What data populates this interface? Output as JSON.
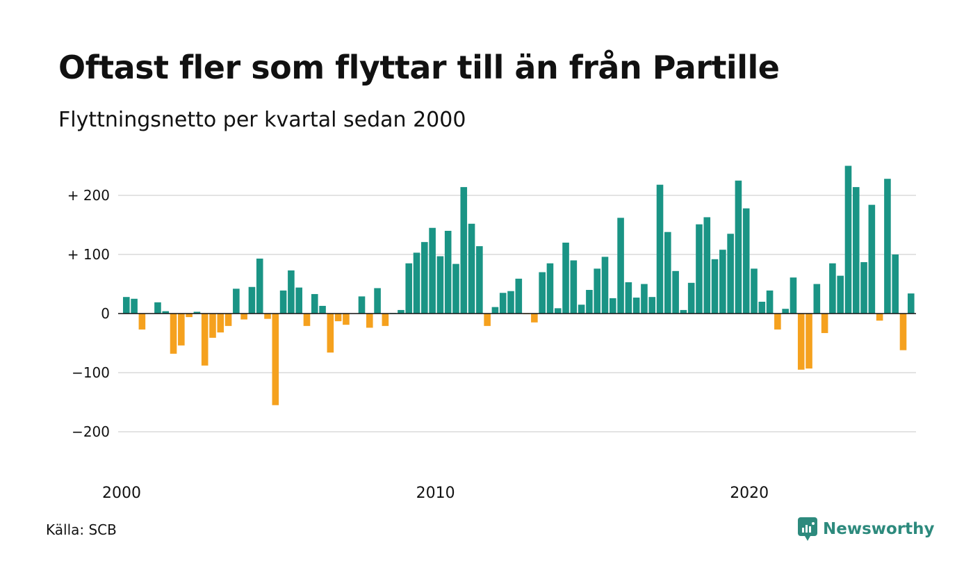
{
  "title": "Oftast fler som flyttar till än från Partille",
  "subtitle": "Flyttningsnetto per kvartal sedan 2000",
  "source": "Källa: SCB",
  "brand": {
    "name": "Newsworthy",
    "icon": "newsworthy-logo-icon",
    "color": "#2d8a7d"
  },
  "colors": {
    "positive": "#1a9485",
    "negative": "#f5a11e",
    "grid": "#e3e3e3",
    "zero": "#111111"
  },
  "chart_data": {
    "type": "bar",
    "title": "Oftast fler som flyttar till än från Partille",
    "subtitle": "Flyttningsnetto per kvartal sedan 2000",
    "xlabel": "",
    "ylabel": "",
    "ylim": [
      -235,
      255
    ],
    "grid": true,
    "y_ticks": [
      {
        "value": 200,
        "label": "+ 200"
      },
      {
        "value": 100,
        "label": "+ 100"
      },
      {
        "value": 0,
        "label": "0"
      },
      {
        "value": -100,
        "label": "−100"
      },
      {
        "value": -200,
        "label": "−200"
      }
    ],
    "x_ticks": [
      {
        "value": "2000",
        "index": 0
      },
      {
        "value": "2010",
        "index": 40
      },
      {
        "value": "2020",
        "index": 80
      }
    ],
    "series": [
      {
        "values": [
          28,
          25,
          -27,
          0,
          19,
          4,
          -68,
          -54,
          -6,
          3,
          -88,
          -41,
          -32,
          -21,
          42,
          -10,
          45,
          93,
          -9,
          -155,
          39,
          73,
          44,
          -21,
          33,
          13,
          -66,
          -13,
          -19,
          0,
          29,
          -24,
          43,
          -21,
          1,
          6,
          85,
          103,
          121,
          145,
          97,
          140,
          84,
          214,
          152,
          114,
          -21,
          11,
          35,
          38,
          59,
          -1,
          -15,
          70,
          85,
          9,
          120,
          90,
          15,
          40,
          76,
          96,
          26,
          162,
          53,
          27,
          50,
          28,
          218,
          138,
          72,
          6,
          52,
          151,
          163,
          92,
          108,
          135,
          225,
          178,
          76,
          20,
          39,
          -27,
          8,
          61,
          -95,
          -93,
          50,
          -33,
          85,
          64,
          250,
          214,
          87,
          184,
          -12,
          228,
          100,
          -62,
          34
        ]
      }
    ]
  }
}
